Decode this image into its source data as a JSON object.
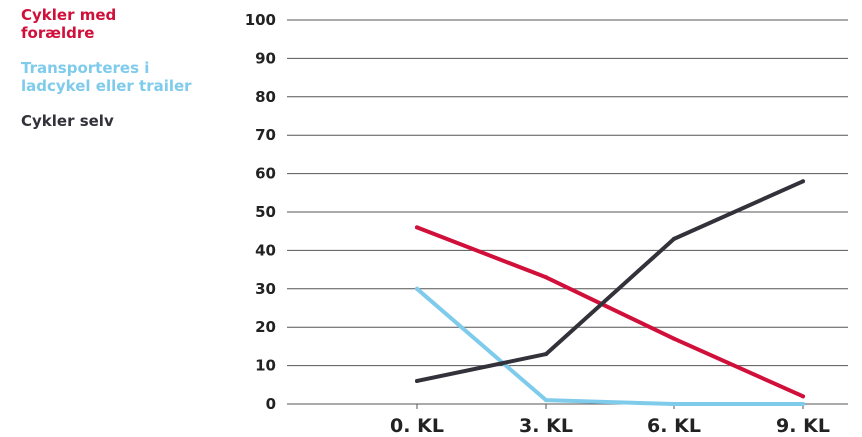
{
  "chart_data": {
    "type": "line",
    "title": "",
    "xlabel": "",
    "ylabel": "",
    "categories": [
      "0. KL",
      "3. KL",
      "6. KL",
      "9. KL"
    ],
    "ylim": [
      0,
      100
    ],
    "yticks": [
      0,
      10,
      20,
      30,
      40,
      50,
      60,
      70,
      80,
      90,
      100
    ],
    "grid": true,
    "legend_position": "left",
    "series": [
      {
        "name": "Cykler med forældre",
        "color": "#d0103a",
        "values": [
          46,
          33,
          17,
          2
        ]
      },
      {
        "name": "Transporteres i ladcykel eller trailer",
        "color": "#7fcbec",
        "values": [
          30,
          1,
          0,
          0
        ]
      },
      {
        "name": "Cykler selv",
        "color": "#33323a",
        "values": [
          6,
          13,
          43,
          58
        ]
      }
    ]
  }
}
